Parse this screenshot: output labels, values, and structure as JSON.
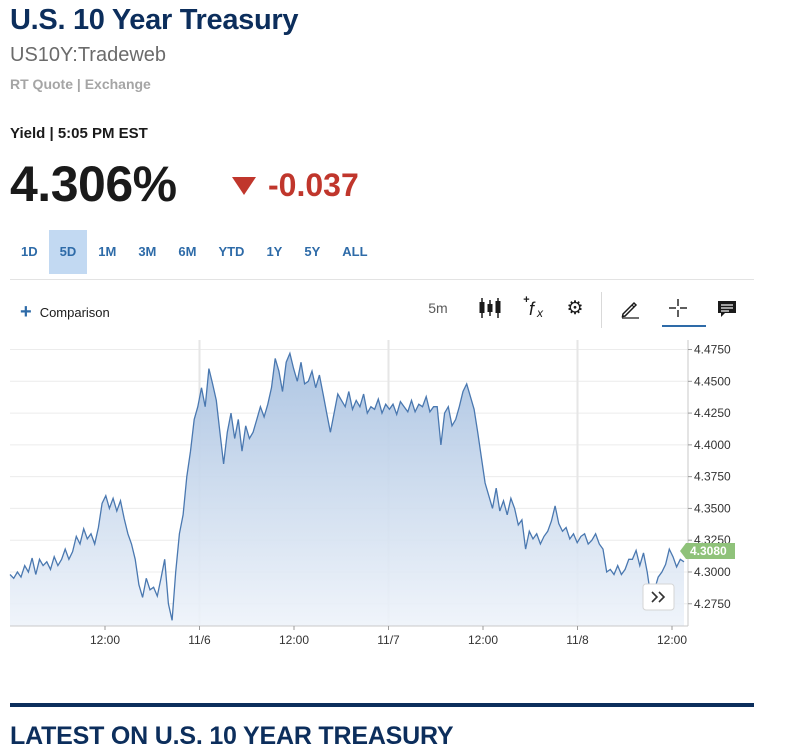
{
  "header": {
    "title": "U.S. 10 Year Treasury",
    "symbol": "US10Y:Tradeweb",
    "quote_source": "RT Quote | Exchange"
  },
  "quote": {
    "yield_line": "Yield | 5:05 PM EST",
    "price": "4.306%",
    "change": "-0.037",
    "change_color": "#c0362c"
  },
  "ranges": {
    "items": [
      "1D",
      "5D",
      "1M",
      "3M",
      "6M",
      "YTD",
      "1Y",
      "5Y",
      "ALL"
    ],
    "active": "5D"
  },
  "toolbar": {
    "comparison_label": "Comparison",
    "interval": "5m",
    "icons": [
      "candlestick-icon",
      "fx-icon",
      "gear-icon",
      "pencil-icon",
      "crosshair-icon",
      "comment-icon"
    ]
  },
  "chart_data": {
    "type": "area",
    "y_ticks": [
      "4.4750",
      "4.4500",
      "4.4250",
      "4.4000",
      "4.3750",
      "4.3500",
      "4.3250",
      "4.3000",
      "4.2750"
    ],
    "x_ticks": [
      "12:00",
      "11/6",
      "12:00",
      "11/7",
      "12:00",
      "11/8",
      "12:00"
    ],
    "last_value_label": "4.3080",
    "ylim": [
      4.2575,
      4.4825
    ],
    "grid": true,
    "series": [
      {
        "values": [
          4.298,
          4.295,
          4.3,
          4.296,
          4.305,
          4.3,
          4.311,
          4.298,
          4.31,
          4.305,
          4.308,
          4.302,
          4.312,
          4.305,
          4.31,
          4.318,
          4.31,
          4.316,
          4.328,
          4.322,
          4.334,
          4.326,
          4.33,
          4.322,
          4.335,
          4.354,
          4.36,
          4.35,
          4.358,
          4.348,
          4.356,
          4.342,
          4.33,
          4.322,
          4.31,
          4.29,
          4.28,
          4.295,
          4.286,
          4.288,
          4.281,
          4.295,
          4.31,
          4.275,
          4.262,
          4.3,
          4.33,
          4.345,
          4.375,
          4.395,
          4.42,
          4.43,
          4.445,
          4.43,
          4.46,
          4.448,
          4.435,
          4.41,
          4.385,
          4.41,
          4.425,
          4.405,
          4.42,
          4.395,
          4.415,
          4.405,
          4.41,
          4.42,
          4.43,
          4.422,
          4.432,
          4.445,
          4.468,
          4.458,
          4.442,
          4.465,
          4.472,
          4.46,
          4.45,
          4.465,
          4.448,
          4.45,
          4.458,
          4.445,
          4.455,
          4.44,
          4.425,
          4.41,
          4.425,
          4.44,
          4.435,
          4.43,
          4.442,
          4.428,
          4.435,
          4.43,
          4.44,
          4.425,
          4.43,
          4.428,
          4.436,
          4.425,
          4.432,
          4.428,
          4.432,
          4.424,
          4.434,
          4.43,
          4.426,
          4.435,
          4.426,
          4.432,
          4.43,
          4.438,
          4.426,
          4.43,
          4.43,
          4.4,
          4.425,
          4.43,
          4.415,
          4.42,
          4.43,
          4.442,
          4.448,
          4.438,
          4.428,
          4.41,
          4.39,
          4.37,
          4.36,
          4.35,
          4.366,
          4.348,
          4.356,
          4.345,
          4.358,
          4.35,
          4.337,
          4.341,
          4.318,
          4.332,
          4.326,
          4.33,
          4.322,
          4.328,
          4.332,
          4.34,
          4.352,
          4.338,
          4.332,
          4.335,
          4.326,
          4.33,
          4.323,
          4.328,
          4.33,
          4.322,
          4.325,
          4.33,
          4.322,
          4.318,
          4.3,
          4.302,
          4.298,
          4.305,
          4.298,
          4.302,
          4.31,
          4.31,
          4.317,
          4.305,
          4.315,
          4.3,
          4.28,
          4.286,
          4.296,
          4.3,
          4.306,
          4.318,
          4.312,
          4.304,
          4.31,
          4.308
        ]
      }
    ]
  },
  "footer": {
    "latest_heading": "LATEST ON U.S. 10 YEAR TREASURY"
  }
}
